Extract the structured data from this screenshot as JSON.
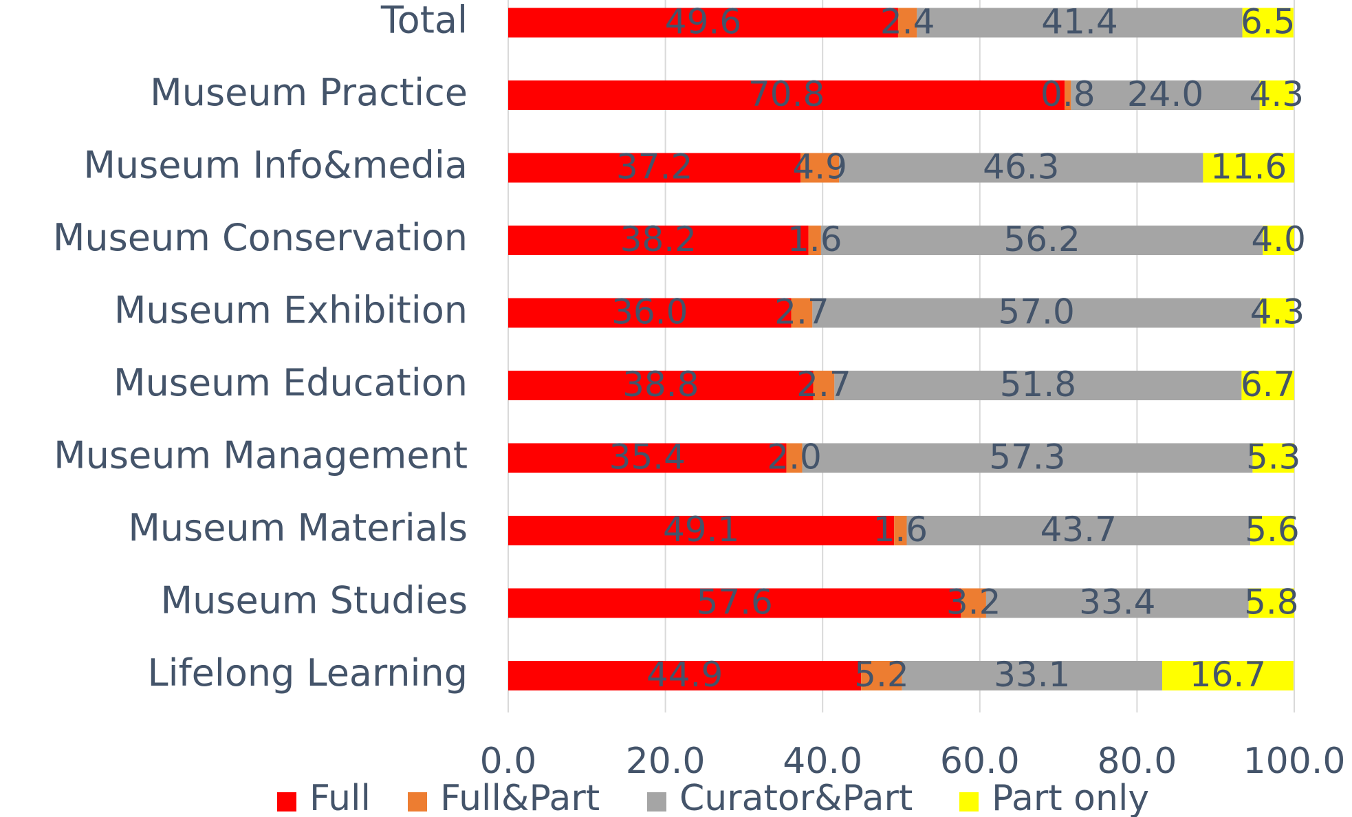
{
  "chart_data": {
    "type": "stacked_bar_horizontal",
    "categories": [
      "Total",
      "Museum Practice",
      "Museum Info&media",
      "Museum Conservation",
      "Museum Exhibition",
      "Museum Education",
      "Museum Management",
      "Museum Materials",
      "Museum Studies",
      "Lifelong Learning"
    ],
    "series": [
      {
        "name": "Full",
        "color": "#ff0000",
        "values": [
          49.6,
          70.8,
          37.2,
          38.2,
          36.0,
          38.8,
          35.4,
          49.1,
          57.6,
          44.9
        ],
        "value_labels": [
          "49.6",
          "70.8",
          "37.2",
          "38.2",
          "36.0",
          "38.8",
          "35.4",
          "49.1",
          "57.6",
          "44.9"
        ]
      },
      {
        "name": "Full&Part",
        "color": "#ed7d31",
        "values": [
          2.4,
          0.8,
          4.9,
          1.6,
          2.7,
          2.7,
          2.0,
          1.6,
          3.2,
          5.2
        ],
        "value_labels": [
          "2.4",
          "0.8",
          "4.9",
          "1.6",
          "2.7",
          "2.7",
          "2.0",
          "1.6",
          "3.2",
          "5.2"
        ]
      },
      {
        "name": "Curator&Part",
        "color": "#a5a5a5",
        "values": [
          41.4,
          24.0,
          46.3,
          56.2,
          57.0,
          51.8,
          57.3,
          43.7,
          33.4,
          33.1
        ],
        "value_labels": [
          "41.4",
          "24.0",
          "46.3",
          "56.2",
          "57.0",
          "51.8",
          "57.3",
          "43.7",
          "33.4",
          "33.1"
        ]
      },
      {
        "name": "Part only",
        "color": "#ffff00",
        "values": [
          6.5,
          4.3,
          11.6,
          4.0,
          4.3,
          6.7,
          5.3,
          5.6,
          5.8,
          16.7
        ],
        "value_labels": [
          "6.5",
          "4.3",
          "11.6",
          "4.0",
          "4.3",
          "6.7",
          "5.3",
          "5.6",
          "5.8",
          "16.7"
        ]
      }
    ],
    "xlim": [
      0,
      100
    ],
    "xticks": [
      {
        "value": 0,
        "label": "0.0"
      },
      {
        "value": 20,
        "label": "20.0"
      },
      {
        "value": 40,
        "label": "40.0"
      },
      {
        "value": 60,
        "label": "60.0"
      },
      {
        "value": 80,
        "label": "80.0"
      },
      {
        "value": 100,
        "label": "100.0"
      }
    ],
    "grid": true,
    "legend": "bottom"
  }
}
